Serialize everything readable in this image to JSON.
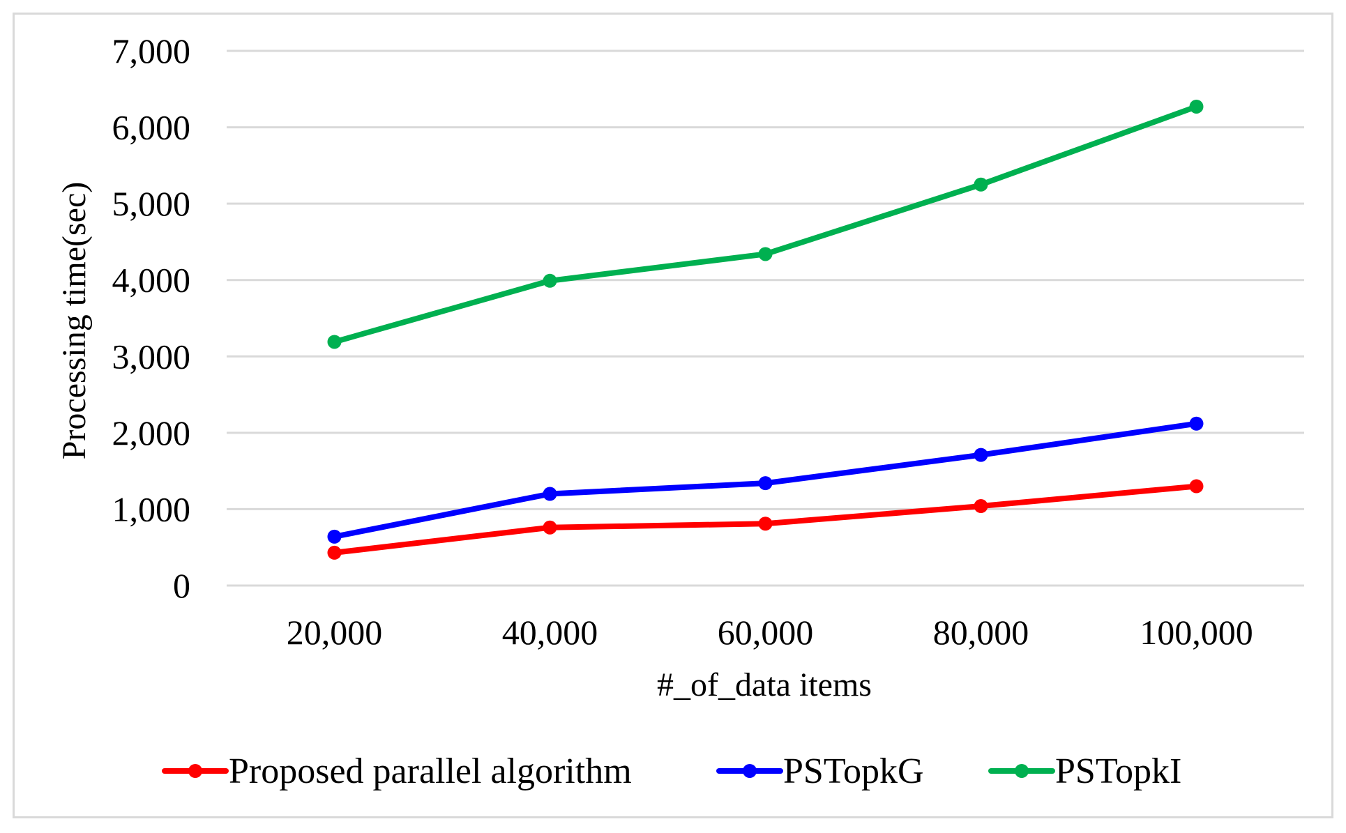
{
  "chart_data": {
    "type": "line",
    "title": "",
    "xlabel": "#_of_data items",
    "ylabel": "Processing time(sec)",
    "categories": [
      "20,000",
      "40,000",
      "60,000",
      "80,000",
      "100,000"
    ],
    "x": [
      20000,
      40000,
      60000,
      80000,
      100000
    ],
    "ylim": [
      0,
      7000
    ],
    "yticks": [
      0,
      1000,
      2000,
      3000,
      4000,
      5000,
      6000,
      7000
    ],
    "ytick_labels": [
      "0",
      "1,000",
      "2,000",
      "3,000",
      "4,000",
      "5,000",
      "6,000",
      "7,000"
    ],
    "grid": true,
    "legend_position": "bottom",
    "series": [
      {
        "name": "Proposed parallel algorithm",
        "color": "#ff0000",
        "values": [
          430,
          760,
          810,
          1040,
          1300
        ]
      },
      {
        "name": "PSTopkG",
        "color": "#0000ff",
        "values": [
          640,
          1200,
          1340,
          1710,
          2120
        ]
      },
      {
        "name": "PSTopkI",
        "color": "#00b050",
        "values": [
          3190,
          3990,
          4340,
          5250,
          6270
        ]
      }
    ]
  }
}
